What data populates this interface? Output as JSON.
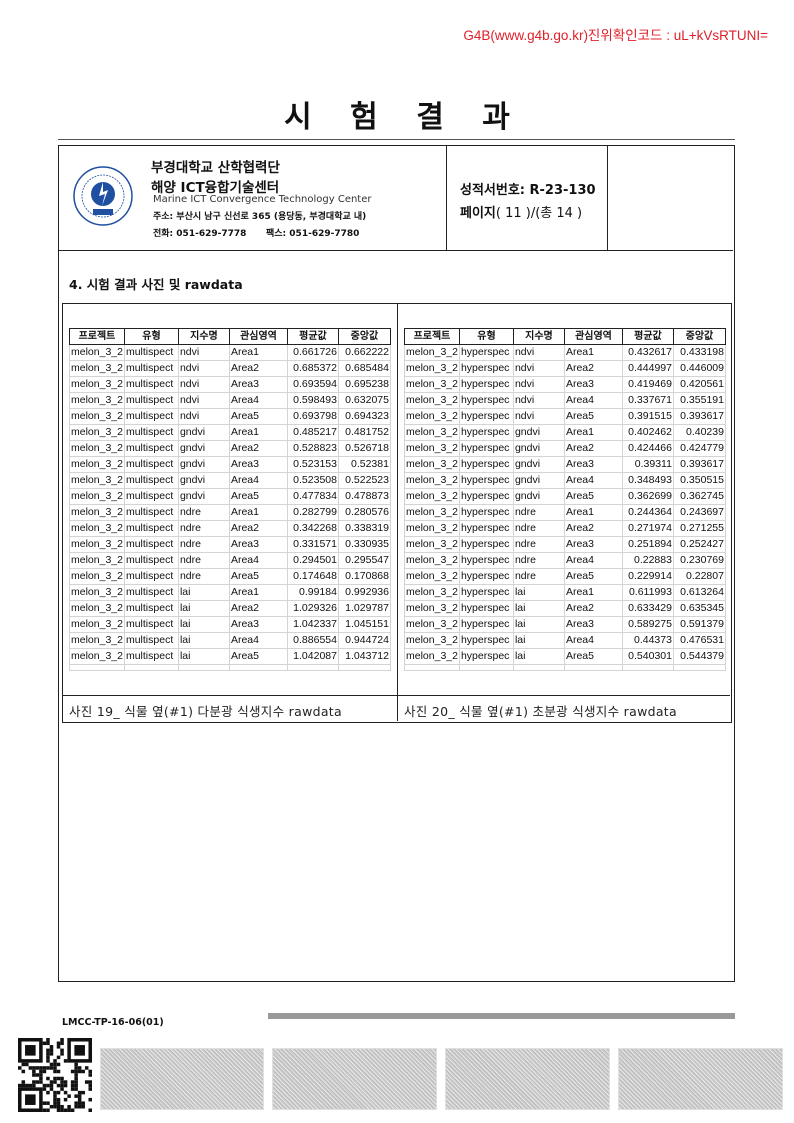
{
  "verification": "G4B(www.g4b.go.kr)진위확인코드 : uL+kVsRTUNI=",
  "title": "시 험 결 과",
  "header": {
    "org_line1": "부경대학교 산학협력단",
    "org_line2": "해양 ICT융합기술센터",
    "org_en": "Marine ICT Convergence Technology Center",
    "address": "주소: 부산시 남구 신선로 365 (용당동, 부경대학교 내)",
    "tel": "전화: 051-629-7778",
    "fax": "팩스:  051-629-7780",
    "report_no": "성적서번호: R-23-130",
    "page_label": "페이지",
    "page_value": "( 11 )/(총 14 )",
    "logo_text": "PUKYONG NATIONAL UNIVERSITY 부경대학교"
  },
  "section_title": "4. 시험 결과 사진 및 rawdata",
  "columns": [
    "프로젝트",
    "유형",
    "지수명",
    "관심영역",
    "평균값",
    "중앙값"
  ],
  "table_left": [
    [
      "melon_3_2",
      "multispect",
      "ndvi",
      "Area1",
      "0.661726",
      "0.662222"
    ],
    [
      "melon_3_2",
      "multispect",
      "ndvi",
      "Area2",
      "0.685372",
      "0.685484"
    ],
    [
      "melon_3_2",
      "multispect",
      "ndvi",
      "Area3",
      "0.693594",
      "0.695238"
    ],
    [
      "melon_3_2",
      "multispect",
      "ndvi",
      "Area4",
      "0.598493",
      "0.632075"
    ],
    [
      "melon_3_2",
      "multispect",
      "ndvi",
      "Area5",
      "0.693798",
      "0.694323"
    ],
    [
      "melon_3_2",
      "multispect",
      "gndvi",
      "Area1",
      "0.485217",
      "0.481752"
    ],
    [
      "melon_3_2",
      "multispect",
      "gndvi",
      "Area2",
      "0.528823",
      "0.526718"
    ],
    [
      "melon_3_2",
      "multispect",
      "gndvi",
      "Area3",
      "0.523153",
      "0.52381"
    ],
    [
      "melon_3_2",
      "multispect",
      "gndvi",
      "Area4",
      "0.523508",
      "0.522523"
    ],
    [
      "melon_3_2",
      "multispect",
      "gndvi",
      "Area5",
      "0.477834",
      "0.478873"
    ],
    [
      "melon_3_2",
      "multispect",
      "ndre",
      "Area1",
      "0.282799",
      "0.280576"
    ],
    [
      "melon_3_2",
      "multispect",
      "ndre",
      "Area2",
      "0.342268",
      "0.338319"
    ],
    [
      "melon_3_2",
      "multispect",
      "ndre",
      "Area3",
      "0.331571",
      "0.330935"
    ],
    [
      "melon_3_2",
      "multispect",
      "ndre",
      "Area4",
      "0.294501",
      "0.295547"
    ],
    [
      "melon_3_2",
      "multispect",
      "ndre",
      "Area5",
      "0.174648",
      "0.170868"
    ],
    [
      "melon_3_2",
      "multispect",
      "lai",
      "Area1",
      "0.99184",
      "0.992936"
    ],
    [
      "melon_3_2",
      "multispect",
      "lai",
      "Area2",
      "1.029326",
      "1.029787"
    ],
    [
      "melon_3_2",
      "multispect",
      "lai",
      "Area3",
      "1.042337",
      "1.045151"
    ],
    [
      "melon_3_2",
      "multispect",
      "lai",
      "Area4",
      "0.886554",
      "0.944724"
    ],
    [
      "melon_3_2",
      "multispect",
      "lai",
      "Area5",
      "1.042087",
      "1.043712"
    ]
  ],
  "table_right": [
    [
      "melon_3_2",
      "hyperspec",
      "ndvi",
      "Area1",
      "0.432617",
      "0.433198"
    ],
    [
      "melon_3_2",
      "hyperspec",
      "ndvi",
      "Area2",
      "0.444997",
      "0.446009"
    ],
    [
      "melon_3_2",
      "hyperspec",
      "ndvi",
      "Area3",
      "0.419469",
      "0.420561"
    ],
    [
      "melon_3_2",
      "hyperspec",
      "ndvi",
      "Area4",
      "0.337671",
      "0.355191"
    ],
    [
      "melon_3_2",
      "hyperspec",
      "ndvi",
      "Area5",
      "0.391515",
      "0.393617"
    ],
    [
      "melon_3_2",
      "hyperspec",
      "gndvi",
      "Area1",
      "0.402462",
      "0.40239"
    ],
    [
      "melon_3_2",
      "hyperspec",
      "gndvi",
      "Area2",
      "0.424466",
      "0.424779"
    ],
    [
      "melon_3_2",
      "hyperspec",
      "gndvi",
      "Area3",
      "0.39311",
      "0.393617"
    ],
    [
      "melon_3_2",
      "hyperspec",
      "gndvi",
      "Area4",
      "0.348493",
      "0.350515"
    ],
    [
      "melon_3_2",
      "hyperspec",
      "gndvi",
      "Area5",
      "0.362699",
      "0.362745"
    ],
    [
      "melon_3_2",
      "hyperspec",
      "ndre",
      "Area1",
      "0.244364",
      "0.243697"
    ],
    [
      "melon_3_2",
      "hyperspec",
      "ndre",
      "Area2",
      "0.271974",
      "0.271255"
    ],
    [
      "melon_3_2",
      "hyperspec",
      "ndre",
      "Area3",
      "0.251894",
      "0.252427"
    ],
    [
      "melon_3_2",
      "hyperspec",
      "ndre",
      "Area4",
      "0.22883",
      "0.230769"
    ],
    [
      "melon_3_2",
      "hyperspec",
      "ndre",
      "Area5",
      "0.229914",
      "0.22807"
    ],
    [
      "melon_3_2",
      "hyperspec",
      "lai",
      "Area1",
      "0.611993",
      "0.613264"
    ],
    [
      "melon_3_2",
      "hyperspec",
      "lai",
      "Area2",
      "0.633429",
      "0.635345"
    ],
    [
      "melon_3_2",
      "hyperspec",
      "lai",
      "Area3",
      "0.589275",
      "0.591379"
    ],
    [
      "melon_3_2",
      "hyperspec",
      "lai",
      "Area4",
      "0.44373",
      "0.476531"
    ],
    [
      "melon_3_2",
      "hyperspec",
      "lai",
      "Area5",
      "0.540301",
      "0.544379"
    ]
  ],
  "caption_left": "사진 19_ 식물 옆(#1) 다분광 식생지수 rawdata",
  "caption_right": "사진 20_ 식물 옆(#1) 초분광 식생지수 rawdata",
  "footer": {
    "form_code": "LMCC-TP-16-06(01)"
  },
  "colors": {
    "verification": "#e0202a",
    "logo_blue": "#1f4fa0"
  }
}
